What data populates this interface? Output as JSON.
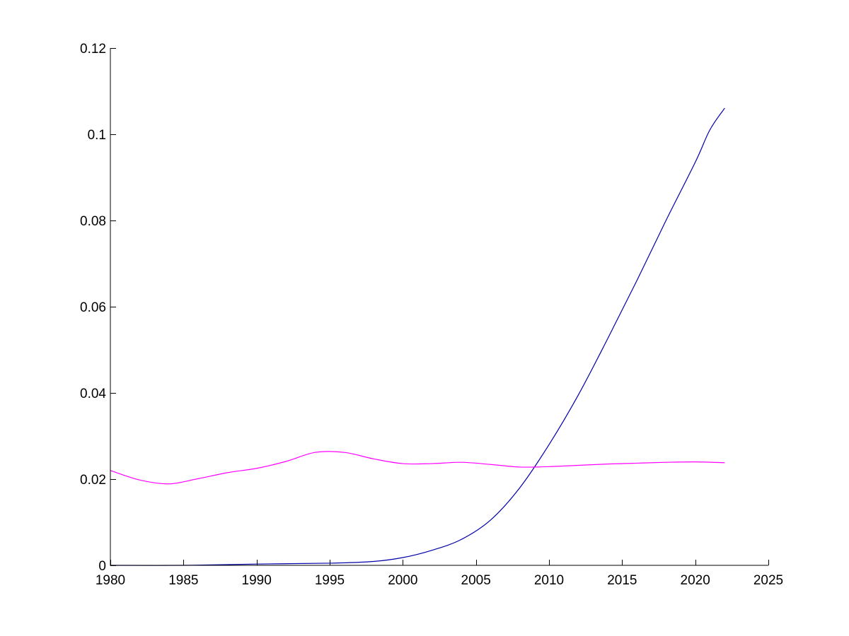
{
  "chart_data": {
    "type": "line",
    "title": "",
    "xlabel": "",
    "ylabel": "",
    "xlim": [
      1980,
      2025
    ],
    "ylim": [
      0,
      0.12
    ],
    "x_ticks": [
      1980,
      1985,
      1990,
      1995,
      2000,
      2005,
      2010,
      2015,
      2020,
      2025
    ],
    "x_tick_labels": [
      "1980",
      "1985",
      "1990",
      "1995",
      "2000",
      "2005",
      "2010",
      "2015",
      "2020",
      "2025"
    ],
    "y_ticks": [
      0,
      0.02,
      0.04,
      0.06,
      0.08,
      0.1,
      0.12
    ],
    "y_tick_labels": [
      "0",
      "0.02",
      "0.04",
      "0.06",
      "0.08",
      "0.1",
      "0.12"
    ],
    "grid": false,
    "legend": "none",
    "series": [
      {
        "color": "#0000aa",
        "x": [
          1980,
          1985,
          1990,
          1995,
          1998,
          2000,
          2002,
          2004,
          2006,
          2008,
          2010,
          2012,
          2014,
          2016,
          2018,
          2020,
          2021,
          2022
        ],
        "y": [
          0.0,
          0.0,
          0.0003,
          0.0005,
          0.0009,
          0.0018,
          0.0035,
          0.006,
          0.0105,
          0.018,
          0.028,
          0.0395,
          0.0525,
          0.066,
          0.08,
          0.0935,
          0.101,
          0.106
        ]
      },
      {
        "color": "#ff00ff",
        "x": [
          1980,
          1982,
          1984,
          1986,
          1988,
          1990,
          1992,
          1994,
          1996,
          1998,
          2000,
          2002,
          2004,
          2006,
          2008,
          2010,
          2012,
          2014,
          2016,
          2018,
          2020,
          2022
        ],
        "y": [
          0.022,
          0.0198,
          0.0189,
          0.0201,
          0.0215,
          0.0225,
          0.0241,
          0.0262,
          0.0262,
          0.0247,
          0.0236,
          0.0236,
          0.0239,
          0.0234,
          0.0228,
          0.0229,
          0.0232,
          0.0235,
          0.0237,
          0.0239,
          0.024,
          0.0238
        ]
      }
    ]
  }
}
